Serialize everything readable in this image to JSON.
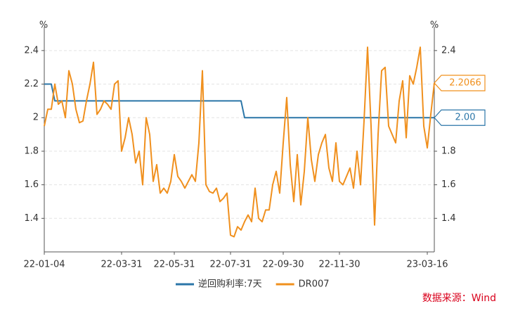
{
  "chart_data": {
    "type": "line",
    "y_unit": "%",
    "y2_unit": "%",
    "categories": [
      "22-01-04",
      null,
      null,
      null,
      null,
      null,
      null,
      null,
      null,
      null,
      null,
      null,
      null,
      null,
      null,
      null,
      null,
      null,
      null,
      null,
      null,
      null,
      "22-03-31",
      null,
      null,
      null,
      null,
      null,
      null,
      null,
      null,
      null,
      null,
      null,
      null,
      null,
      null,
      "22-05-31",
      null,
      null,
      null,
      null,
      null,
      null,
      null,
      null,
      null,
      null,
      null,
      null,
      null,
      null,
      null,
      "22-07-31",
      null,
      null,
      null,
      null,
      null,
      null,
      null,
      null,
      null,
      null,
      null,
      null,
      null,
      null,
      "22-09-30",
      null,
      null,
      null,
      null,
      null,
      null,
      null,
      null,
      null,
      null,
      null,
      null,
      null,
      null,
      null,
      "22-11-30",
      null,
      null,
      null,
      null,
      null,
      null,
      null,
      null,
      null,
      null,
      null,
      null,
      null,
      null,
      null,
      null,
      null,
      null,
      null,
      null,
      null,
      null,
      null,
      null,
      "23-03-16",
      null,
      null
    ],
    "series": [
      {
        "name": "逆回购利率:7天",
        "color": "#2b76a8",
        "values": [
          2.2,
          2.2,
          2.2,
          2.1,
          2.1,
          2.1,
          2.1,
          2.1,
          2.1,
          2.1,
          2.1,
          2.1,
          2.1,
          2.1,
          2.1,
          2.1,
          2.1,
          2.1,
          2.1,
          2.1,
          2.1,
          2.1,
          2.1,
          2.1,
          2.1,
          2.1,
          2.1,
          2.1,
          2.1,
          2.1,
          2.1,
          2.1,
          2.1,
          2.1,
          2.1,
          2.1,
          2.1,
          2.1,
          2.1,
          2.1,
          2.1,
          2.1,
          2.1,
          2.1,
          2.1,
          2.1,
          2.1,
          2.1,
          2.1,
          2.1,
          2.1,
          2.1,
          2.1,
          2.1,
          2.1,
          2.1,
          2.1,
          2.0,
          2.0,
          2.0,
          2.0,
          2.0,
          2.0,
          2.0,
          2.0,
          2.0,
          2.0,
          2.0,
          2.0,
          2.0,
          2.0,
          2.0,
          2.0,
          2.0,
          2.0,
          2.0,
          2.0,
          2.0,
          2.0,
          2.0,
          2.0,
          2.0,
          2.0,
          2.0,
          2.0,
          2.0,
          2.0,
          2.0,
          2.0,
          2.0,
          2.0,
          2.0,
          2.0,
          2.0,
          2.0,
          2.0,
          2.0,
          2.0,
          2.0,
          2.0,
          2.0,
          2.0,
          2.0,
          2.0,
          2.0,
          2.0,
          2.0,
          2.0,
          2.0,
          2.0,
          2.0,
          2.0
        ],
        "value_labels": [
          null,
          null,
          null,
          null,
          null,
          null,
          null,
          null,
          null,
          null,
          null,
          null,
          null,
          null,
          null,
          null,
          null,
          null,
          null,
          null,
          null,
          null,
          null,
          null,
          null,
          null,
          null,
          null,
          null,
          null,
          null,
          null,
          null,
          null,
          null,
          null,
          null,
          null,
          null,
          null,
          null,
          null,
          null,
          null,
          null,
          null,
          null,
          null,
          null,
          null,
          null,
          null,
          null,
          null,
          null,
          null,
          null,
          null,
          null,
          null,
          null,
          null,
          null,
          null,
          null,
          null,
          null,
          null,
          null,
          null,
          null,
          null,
          null,
          null,
          null,
          null,
          null,
          null,
          null,
          null,
          null,
          null,
          null,
          null,
          null,
          null,
          null,
          null,
          null,
          null,
          null,
          null,
          null,
          null,
          null,
          null,
          null,
          null,
          null,
          null,
          null,
          null,
          null,
          null,
          null,
          null,
          null,
          null,
          null,
          null,
          null,
          "2.00"
        ]
      },
      {
        "name": "DR007",
        "color": "#f0901e",
        "values": [
          1.95,
          2.05,
          2.05,
          2.2,
          2.08,
          2.1,
          2.0,
          2.28,
          2.2,
          2.05,
          1.97,
          1.98,
          2.1,
          2.2,
          2.33,
          2.02,
          2.05,
          2.1,
          2.08,
          2.05,
          2.2,
          2.22,
          1.8,
          1.88,
          2.0,
          1.9,
          1.73,
          1.8,
          1.6,
          2.0,
          1.9,
          1.62,
          1.72,
          1.55,
          1.58,
          1.55,
          1.62,
          1.78,
          1.65,
          1.62,
          1.58,
          1.62,
          1.66,
          1.62,
          1.85,
          2.28,
          1.6,
          1.56,
          1.55,
          1.58,
          1.5,
          1.52,
          1.55,
          1.3,
          1.29,
          1.35,
          1.33,
          1.38,
          1.42,
          1.38,
          1.58,
          1.4,
          1.38,
          1.45,
          1.45,
          1.6,
          1.68,
          1.55,
          1.85,
          2.12,
          1.72,
          1.5,
          1.78,
          1.48,
          1.68,
          2.0,
          1.75,
          1.62,
          1.78,
          1.85,
          1.9,
          1.7,
          1.62,
          1.85,
          1.62,
          1.6,
          1.65,
          1.7,
          1.58,
          1.8,
          1.6,
          1.98,
          2.42,
          1.95,
          1.36,
          1.9,
          2.28,
          2.3,
          1.95,
          1.9,
          1.85,
          2.1,
          2.22,
          1.88,
          2.25,
          2.2,
          2.3,
          2.42,
          1.95,
          1.82,
          2.02,
          2.2066
        ],
        "value_labels": [
          null,
          null,
          null,
          null,
          null,
          null,
          null,
          null,
          null,
          null,
          null,
          null,
          null,
          null,
          null,
          null,
          null,
          null,
          null,
          null,
          null,
          null,
          null,
          null,
          null,
          null,
          null,
          null,
          null,
          null,
          null,
          null,
          null,
          null,
          null,
          null,
          null,
          null,
          null,
          null,
          null,
          null,
          null,
          null,
          null,
          null,
          null,
          null,
          null,
          null,
          null,
          null,
          null,
          null,
          null,
          null,
          null,
          null,
          null,
          null,
          null,
          null,
          null,
          null,
          null,
          null,
          null,
          null,
          null,
          null,
          null,
          null,
          null,
          null,
          null,
          null,
          null,
          null,
          null,
          null,
          null,
          null,
          null,
          null,
          null,
          null,
          null,
          null,
          null,
          null,
          null,
          null,
          null,
          null,
          null,
          null,
          null,
          null,
          null,
          null,
          null,
          null,
          null,
          null,
          null,
          null,
          null,
          null,
          null,
          null,
          null,
          "2.2066"
        ]
      }
    ],
    "ylim": [
      1.2,
      2.5
    ],
    "yticks": [
      1.4,
      1.6,
      1.8,
      2,
      2.2,
      2.4
    ],
    "y2lim": [
      1.2,
      2.5
    ],
    "y2ticks": [
      1.4,
      1.6,
      1.8,
      2,
      2.2,
      2.4
    ],
    "grid": true,
    "legend": "bottom",
    "source": "数据来源：Wind"
  }
}
